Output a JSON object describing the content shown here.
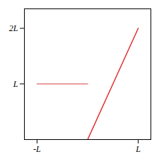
{
  "chart_data": {
    "type": "line",
    "x": [
      -1,
      0,
      1
    ],
    "series": [
      {
        "color": "#e03030",
        "values": [
          null,
          0,
          2
        ]
      },
      {
        "color": "#e08080",
        "values": [
          1,
          1,
          null
        ]
      }
    ],
    "xlim": [
      -1.25,
      1.25
    ],
    "ylim": [
      0,
      2.35
    ],
    "xticks": [
      {
        "value": -1,
        "label": "-L"
      },
      {
        "value": 1,
        "label": "L"
      }
    ],
    "yticks": [
      {
        "value": 1,
        "label": "L"
      },
      {
        "value": 2,
        "label": "2L"
      }
    ],
    "grid": false
  }
}
